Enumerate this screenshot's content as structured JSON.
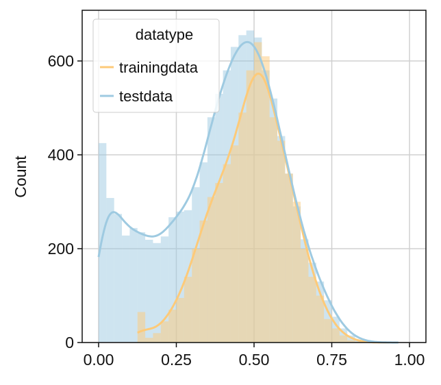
{
  "chart_data": {
    "type": "histogram",
    "xlabel": "",
    "ylabel": "Count",
    "xlim": [
      -0.05,
      1.05
    ],
    "ylim": [
      0,
      700
    ],
    "xticks": [
      "0.00",
      "0.25",
      "0.50",
      "0.75",
      "1.00"
    ],
    "yticks": [
      "0",
      "200",
      "400",
      "600"
    ],
    "grid": true,
    "legend": {
      "title": "datatype",
      "placement": "top-left"
    },
    "bin_width": 0.025,
    "series": [
      {
        "name": "trainingdata",
        "color": "#fdca79",
        "bin_start": 0.125,
        "counts": [
          65,
          10,
          20,
          45,
          70,
          95,
          140,
          200,
          260,
          310,
          340,
          380,
          420,
          490,
          580,
          640,
          610,
          480,
          430,
          360,
          300,
          200,
          140,
          100,
          50,
          30,
          15,
          5,
          2
        ]
      },
      {
        "name": "testdata",
        "color": "#9ecae1",
        "bin_start": 0.0,
        "counts": [
          425,
          308,
          274,
          228,
          244,
          235,
          219,
          212,
          226,
          267,
          279,
          282,
          331,
          384,
          480,
          530,
          580,
          630,
          655,
          665,
          650,
          580,
          520,
          440,
          360,
          290,
          220,
          170,
          130,
          90,
          55,
          30,
          15,
          5,
          2
        ]
      }
    ]
  }
}
